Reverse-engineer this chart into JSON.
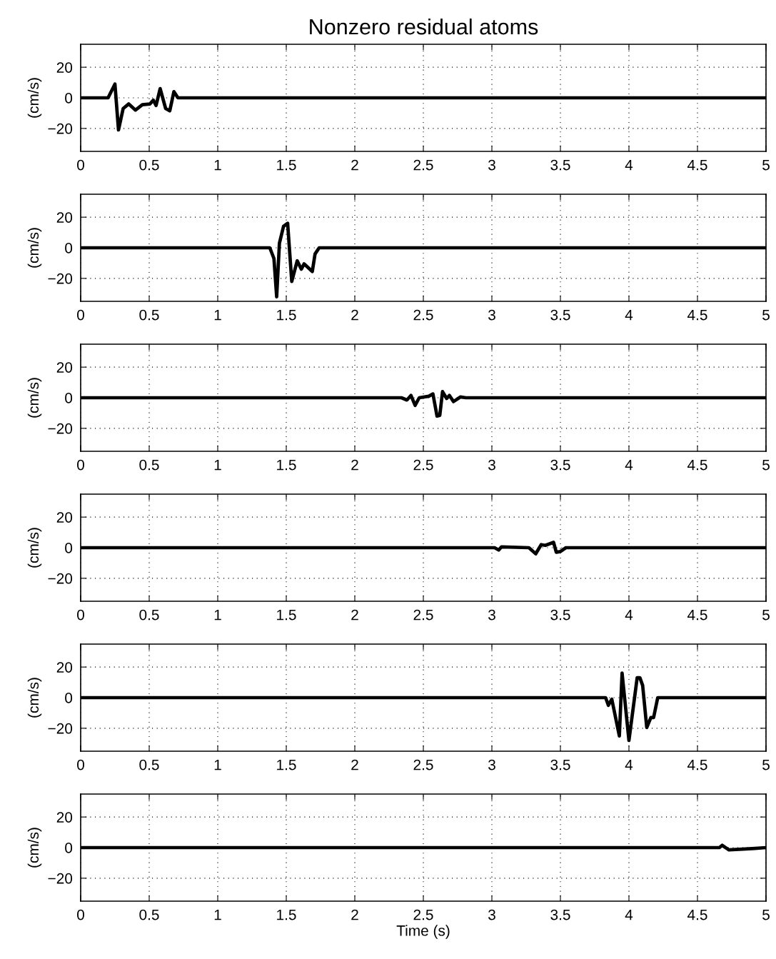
{
  "chart_data": [
    {
      "type": "line",
      "title": "Nonzero residual atoms",
      "ylabel": "(cm/s)",
      "xlim": [
        0,
        5
      ],
      "ylim": [
        -35,
        35
      ],
      "xticks": [
        0,
        0.5,
        1,
        1.5,
        2,
        2.5,
        3,
        3.5,
        4,
        4.5,
        5
      ],
      "yticks": [
        -20,
        0,
        20
      ],
      "grid": true,
      "line_style": "solid",
      "marker": "none",
      "series": [
        {
          "color": "#000000",
          "x": [
            0,
            0.2,
            0.25,
            0.276,
            0.31,
            0.35,
            0.4,
            0.45,
            0.505,
            0.53,
            0.55,
            0.58,
            0.62,
            0.65,
            0.68,
            0.71,
            5
          ],
          "values": [
            0,
            0,
            9,
            -21,
            -7,
            -4,
            -8,
            -4.5,
            -4,
            -1.5,
            -5,
            6,
            -7,
            -8.5,
            4,
            0,
            0
          ]
        }
      ]
    },
    {
      "type": "line",
      "ylabel": "(cm/s)",
      "xlim": [
        0,
        5
      ],
      "ylim": [
        -35,
        35
      ],
      "xticks": [
        0,
        0.5,
        1,
        1.5,
        2,
        2.5,
        3,
        3.5,
        4,
        4.5,
        5
      ],
      "yticks": [
        -20,
        0,
        20
      ],
      "grid": true,
      "line_style": "solid",
      "marker": "none",
      "series": [
        {
          "color": "#000000",
          "x": [
            0,
            1.38,
            1.41,
            1.43,
            1.45,
            1.48,
            1.51,
            1.54,
            1.58,
            1.61,
            1.63,
            1.69,
            1.71,
            1.74,
            5
          ],
          "values": [
            0,
            0,
            -7,
            -32,
            3,
            14,
            16,
            -22,
            -8.5,
            -14,
            -10.5,
            -15.5,
            -4,
            0,
            0
          ]
        }
      ]
    },
    {
      "type": "line",
      "ylabel": "(cm/s)",
      "xlim": [
        0,
        5
      ],
      "ylim": [
        -35,
        35
      ],
      "xticks": [
        0,
        0.5,
        1,
        1.5,
        2,
        2.5,
        3,
        3.5,
        4,
        4.5,
        5
      ],
      "yticks": [
        -20,
        0,
        20
      ],
      "grid": true,
      "line_style": "solid",
      "marker": "none",
      "series": [
        {
          "color": "#000000",
          "x": [
            0,
            2.34,
            2.38,
            2.41,
            2.44,
            2.47,
            2.54,
            2.57,
            2.6,
            2.62,
            2.64,
            2.67,
            2.69,
            2.72,
            2.77,
            2.81,
            5
          ],
          "values": [
            0,
            0,
            -1.5,
            1.5,
            -5,
            0,
            1,
            2.5,
            -12,
            -11.5,
            4,
            -0.5,
            1.5,
            -2.5,
            0.5,
            0,
            0
          ]
        }
      ]
    },
    {
      "type": "line",
      "ylabel": "(cm/s)",
      "xlim": [
        0,
        5
      ],
      "ylim": [
        -35,
        35
      ],
      "xticks": [
        0,
        0.5,
        1,
        1.5,
        2,
        2.5,
        3,
        3.5,
        4,
        4.5,
        5
      ],
      "yticks": [
        -20,
        0,
        20
      ],
      "grid": true,
      "line_style": "solid",
      "marker": "none",
      "series": [
        {
          "color": "#000000",
          "x": [
            0,
            3.02,
            3.05,
            3.07,
            3.27,
            3.32,
            3.36,
            3.39,
            3.45,
            3.47,
            3.5,
            3.54,
            5
          ],
          "values": [
            0,
            0,
            -1.5,
            0.5,
            0,
            -4,
            2,
            1.5,
            3.5,
            -3,
            -2.5,
            0,
            0
          ]
        }
      ]
    },
    {
      "type": "line",
      "ylabel": "(cm/s)",
      "xlim": [
        0,
        5
      ],
      "ylim": [
        -35,
        35
      ],
      "xticks": [
        0,
        0.5,
        1,
        1.5,
        2,
        2.5,
        3,
        3.5,
        4,
        4.5,
        5
      ],
      "yticks": [
        -20,
        0,
        20
      ],
      "grid": true,
      "line_style": "solid",
      "marker": "none",
      "series": [
        {
          "color": "#000000",
          "x": [
            0,
            3.83,
            3.85,
            3.875,
            3.93,
            3.95,
            4.0,
            4.06,
            4.08,
            4.1,
            4.13,
            4.16,
            4.18,
            4.21,
            5
          ],
          "values": [
            0,
            0,
            -5,
            -1,
            -25,
            16,
            -28,
            13,
            13,
            8,
            -19.5,
            -13,
            -13,
            0,
            0
          ]
        }
      ]
    },
    {
      "type": "line",
      "ylabel": "(cm/s)",
      "xlabel": "Time (s)",
      "xlim": [
        0,
        5
      ],
      "ylim": [
        -35,
        35
      ],
      "xticks": [
        0,
        0.5,
        1,
        1.5,
        2,
        2.5,
        3,
        3.5,
        4,
        4.5,
        5
      ],
      "yticks": [
        -20,
        0,
        20
      ],
      "grid": true,
      "line_style": "solid",
      "marker": "none",
      "series": [
        {
          "color": "#000000",
          "x": [
            0,
            4.66,
            4.68,
            4.73,
            4.83,
            4.92,
            5
          ],
          "values": [
            0,
            0,
            1.5,
            -1.5,
            -1,
            -0.5,
            0
          ]
        }
      ]
    }
  ]
}
